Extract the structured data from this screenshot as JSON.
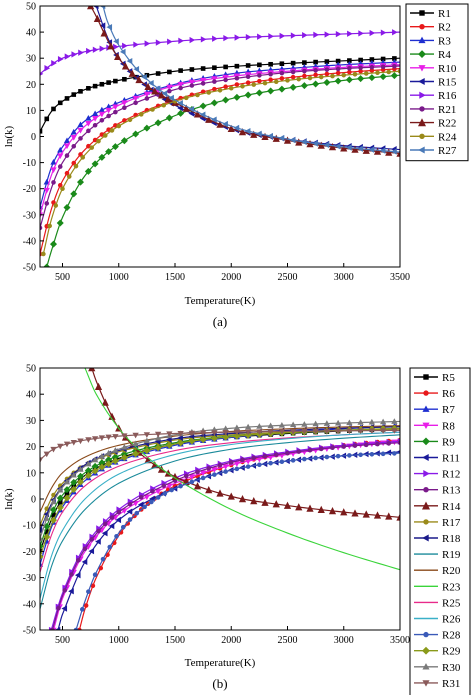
{
  "chart_data": [
    {
      "type": "line",
      "caption": "(a)",
      "xlabel": "Temperature(K)",
      "ylabel": "ln(k)",
      "xlim": [
        300,
        3500
      ],
      "ylim": [
        -50,
        50
      ],
      "xticks": [
        500,
        1000,
        1500,
        2000,
        2500,
        3000,
        3500
      ],
      "yticks": [
        -50,
        -40,
        -30,
        -20,
        -10,
        0,
        10,
        20,
        30,
        40,
        50
      ],
      "legend_position": "right",
      "series": [
        {
          "name": "R1",
          "color": "#000000",
          "marker": "square",
          "x": [
            300,
            400,
            500,
            700,
            1000,
            1500,
            2000,
            2500,
            3000,
            3500
          ],
          "y": [
            2,
            9.5,
            13.5,
            18,
            21.5,
            25,
            26.8,
            28,
            29,
            30
          ]
        },
        {
          "name": "R2",
          "color": "#e8191a",
          "marker": "circle",
          "x": [
            300,
            400,
            500,
            700,
            1000,
            1500,
            2000,
            2500,
            3000,
            3500
          ],
          "y": [
            -45,
            -28,
            -17,
            -5,
            5,
            14,
            19.5,
            22.5,
            24.5,
            26
          ]
        },
        {
          "name": "R3",
          "color": "#1f2fd0",
          "marker": "triangle",
          "x": [
            300,
            400,
            500,
            700,
            1000,
            1500,
            2000,
            2500,
            3000,
            3500
          ],
          "y": [
            -27,
            -12,
            -4,
            6,
            13,
            20,
            24,
            26,
            27.5,
            28.5
          ]
        },
        {
          "name": "R4",
          "color": "#1a8a1a",
          "marker": "diamond",
          "x": [
            360,
            400,
            500,
            700,
            1000,
            1500,
            2000,
            2500,
            3000,
            3500
          ],
          "y": [
            -50,
            -44,
            -31,
            -15,
            -3,
            8,
            14.5,
            18.5,
            21.5,
            23.5
          ]
        },
        {
          "name": "R10",
          "color": "#e81ee8",
          "marker": "tri-down",
          "x": [
            300,
            400,
            500,
            700,
            1000,
            1500,
            2000,
            2500,
            3000,
            3500
          ],
          "y": [
            -30,
            -15,
            -6,
            4,
            12,
            19.5,
            23,
            25,
            26.5,
            27.5
          ]
        },
        {
          "name": "R15",
          "color": "#1a1a9a",
          "marker": "tri-left",
          "x": [
            800,
            900,
            1000,
            1200,
            1500,
            2000,
            2500,
            3000,
            3500
          ],
          "y": [
            50,
            38,
            30,
            21,
            12,
            3,
            -1,
            -3.5,
            -5
          ]
        },
        {
          "name": "R16",
          "color": "#8a1ae8",
          "marker": "tri-right",
          "x": [
            300,
            400,
            500,
            700,
            1000,
            1500,
            2000,
            2500,
            3000,
            3500
          ],
          "y": [
            24,
            27.5,
            30,
            32.5,
            34.5,
            36.5,
            37.8,
            38.6,
            39.3,
            40
          ]
        },
        {
          "name": "R21",
          "color": "#7a1a8a",
          "marker": "hexagon",
          "x": [
            300,
            400,
            500,
            700,
            1000,
            1500,
            2000,
            2500,
            3000,
            3500
          ],
          "y": [
            -35,
            -20,
            -10,
            1,
            10,
            18,
            22,
            24.5,
            26,
            27
          ]
        },
        {
          "name": "R22",
          "color": "#7a1a1a",
          "marker": "star",
          "x": [
            750,
            800,
            900,
            1000,
            1200,
            1500,
            2000,
            2500,
            3000,
            3500
          ],
          "y": [
            50,
            46,
            37,
            30,
            21,
            13,
            3,
            -1.5,
            -4.5,
            -6.5
          ]
        },
        {
          "name": "R24",
          "color": "#9a8a1a",
          "marker": "pentagon",
          "x": [
            330,
            400,
            500,
            700,
            1000,
            1500,
            2000,
            2500,
            3000,
            3500
          ],
          "y": [
            -45,
            -32,
            -20,
            -7,
            4,
            13.5,
            18.5,
            21.5,
            23.5,
            25
          ]
        },
        {
          "name": "R27",
          "color": "#4a7ab8",
          "marker": "left-line",
          "x": [
            860,
            900,
            1000,
            1200,
            1500,
            2000,
            2500,
            3000,
            3500
          ],
          "y": [
            50,
            44,
            35,
            24,
            14,
            4,
            -1,
            -4,
            -6
          ]
        }
      ]
    },
    {
      "type": "line",
      "caption": "(b)",
      "xlabel": "Temperature(K)",
      "ylabel": "ln(k)",
      "xlim": [
        300,
        3500
      ],
      "ylim": [
        -50,
        50
      ],
      "xticks": [
        500,
        1000,
        1500,
        2000,
        2500,
        3000,
        3500
      ],
      "yticks": [
        -50,
        -40,
        -30,
        -20,
        -10,
        0,
        10,
        20,
        30,
        40,
        50
      ],
      "legend_position": "right",
      "series": [
        {
          "name": "R5",
          "color": "#000000",
          "marker": "square",
          "x": [
            300,
            400,
            500,
            700,
            1000,
            1500,
            2000,
            2500,
            3000,
            3500
          ],
          "y": [
            -20,
            -8,
            0,
            9,
            15.5,
            21,
            23.5,
            25,
            26,
            26.8
          ]
        },
        {
          "name": "R6",
          "color": "#e8191a",
          "marker": "circle",
          "x": [
            650,
            700,
            800,
            1000,
            1200,
            1500,
            2000,
            2500,
            3000,
            3500
          ],
          "y": [
            -50,
            -42,
            -30,
            -14,
            -4,
            5,
            13,
            17.5,
            20.5,
            22.5
          ]
        },
        {
          "name": "R7",
          "color": "#1f2fd0",
          "marker": "triangle",
          "x": [
            300,
            400,
            500,
            700,
            1000,
            1500,
            2000,
            2500,
            3000,
            3500
          ],
          "y": [
            -25,
            -11,
            -3,
            7,
            14.5,
            20.5,
            23.5,
            25.5,
            26.8,
            27.8
          ]
        },
        {
          "name": "R8",
          "color": "#e81ee8",
          "marker": "tri-down",
          "x": [
            420,
            500,
            700,
            1000,
            1500,
            2000,
            2500,
            3000,
            3500
          ],
          "y": [
            -50,
            -38,
            -20,
            -6,
            6,
            13,
            17,
            20,
            22
          ]
        },
        {
          "name": "R9",
          "color": "#1a8a1a",
          "marker": "diamond",
          "x": [
            300,
            400,
            500,
            700,
            1000,
            1500,
            2000,
            2500,
            3000,
            3500
          ],
          "y": [
            -18,
            -6,
            1.5,
            10,
            16.5,
            21.5,
            24,
            25.3,
            26.2,
            26.8
          ]
        },
        {
          "name": "R11",
          "color": "#1a1a9a",
          "marker": "tri-left",
          "x": [
            460,
            500,
            700,
            1000,
            1500,
            2000,
            2500,
            3000,
            3500
          ],
          "y": [
            -50,
            -44,
            -24,
            -8,
            4,
            11,
            14.5,
            16.5,
            18
          ]
        },
        {
          "name": "R12",
          "color": "#8a1ae8",
          "marker": "tri-right",
          "x": [
            400,
            500,
            700,
            1000,
            1500,
            2000,
            2500,
            3000,
            3500
          ],
          "y": [
            -50,
            -36,
            -18,
            -4,
            8,
            14.5,
            18,
            20.5,
            22
          ]
        },
        {
          "name": "R13",
          "color": "#7a1a8a",
          "marker": "hexagon",
          "x": [
            410,
            500,
            700,
            1000,
            1500,
            2000,
            2500,
            3000,
            3500
          ],
          "y": [
            -50,
            -37,
            -19,
            -5,
            7,
            14,
            17.5,
            20,
            21.5
          ]
        },
        {
          "name": "R14",
          "color": "#7a1a1a",
          "marker": "star",
          "x": [
            760,
            800,
            900,
            1000,
            1200,
            1500,
            2000,
            2500,
            3000,
            3500
          ],
          "y": [
            50,
            45,
            35,
            27,
            17,
            8.5,
            1,
            -2.5,
            -5,
            -7
          ]
        },
        {
          "name": "R17",
          "color": "#9a8a1a",
          "marker": "pentagon",
          "x": [
            300,
            400,
            500,
            700,
            1000,
            1500,
            2000,
            2500,
            3000,
            3500
          ],
          "y": [
            -10,
            0,
            6,
            13,
            18,
            22.5,
            24.5,
            25.5,
            26.2,
            26.7
          ]
        },
        {
          "name": "R18",
          "color": "#1a1a8a",
          "marker": "left-line",
          "x": [
            300,
            400,
            500,
            700,
            1000,
            1500,
            2000,
            2500,
            3000,
            3500
          ],
          "y": [
            -12,
            -2,
            5,
            13,
            18.5,
            23,
            25,
            26.2,
            27,
            27.6
          ]
        },
        {
          "name": "R19",
          "color": "#1a8a9a",
          "marker": "none",
          "x": [
            300,
            400,
            500,
            700,
            1000,
            1500,
            2000,
            2500,
            3000,
            3500
          ],
          "y": [
            -42,
            -26,
            -16,
            -4,
            6,
            14.5,
            19,
            21.5,
            23.2,
            24.5
          ]
        },
        {
          "name": "R20",
          "color": "#8a4a1a",
          "marker": "none",
          "x": [
            300,
            400,
            500,
            700,
            1000,
            1500,
            2000,
            2500,
            3000,
            3500
          ],
          "y": [
            -5,
            4,
            10,
            16,
            20.5,
            24,
            25.8,
            26.8,
            27.5,
            28
          ]
        },
        {
          "name": "R23",
          "color": "#3ad43a",
          "marker": "none",
          "x": [
            700,
            800,
            1000,
            1200,
            1500,
            2000,
            2500,
            3000,
            3500
          ],
          "y": [
            50,
            40,
            27,
            18,
            8,
            -4,
            -13,
            -20.5,
            -27
          ]
        },
        {
          "name": "R25",
          "color": "#e82a8a",
          "marker": "none",
          "x": [
            300,
            400,
            500,
            700,
            1000,
            1500,
            2000,
            2500,
            3000,
            3500
          ],
          "y": [
            -28,
            -14,
            -5,
            5,
            12.5,
            18.5,
            21.5,
            23.3,
            24.5,
            25.5
          ]
        },
        {
          "name": "R26",
          "color": "#3ab0c8",
          "marker": "none",
          "x": [
            300,
            400,
            500,
            700,
            1000,
            1500,
            2000,
            2500,
            3000,
            3500
          ],
          "y": [
            -38,
            -22,
            -12,
            0,
            9.5,
            17,
            20.8,
            23,
            24.5,
            25.5
          ]
        },
        {
          "name": "R28",
          "color": "#3a5ab8",
          "marker": "circle",
          "x": [
            620,
            700,
            800,
            1000,
            1200,
            1500,
            2000,
            2500,
            3000,
            3500
          ],
          "y": [
            -50,
            -39,
            -28,
            -13,
            -4,
            4,
            11,
            14.5,
            16.5,
            17.5
          ]
        },
        {
          "name": "R29",
          "color": "#8a9a1a",
          "marker": "diamond",
          "x": [
            300,
            400,
            500,
            700,
            1000,
            1500,
            2000,
            2500,
            3000,
            3500
          ],
          "y": [
            -22,
            -10,
            -2,
            8,
            15,
            21,
            23.8,
            25.3,
            26.3,
            27
          ]
        },
        {
          "name": "R30",
          "color": "#7a7a7a",
          "marker": "tri-up-line",
          "x": [
            300,
            400,
            500,
            700,
            1000,
            1500,
            2000,
            2500,
            3000,
            3500
          ],
          "y": [
            -15,
            -3,
            4.5,
            12.5,
            19,
            24.5,
            27,
            28.2,
            29,
            29.6
          ]
        },
        {
          "name": "R31",
          "color": "#8a5a5a",
          "marker": "tri-down",
          "x": [
            300,
            400,
            500,
            700,
            1000,
            1500,
            2000,
            2500,
            3000,
            3500
          ],
          "y": [
            15,
            18.5,
            20.5,
            22.5,
            24,
            25,
            25.5,
            25.8,
            26,
            26.2
          ]
        }
      ]
    }
  ]
}
